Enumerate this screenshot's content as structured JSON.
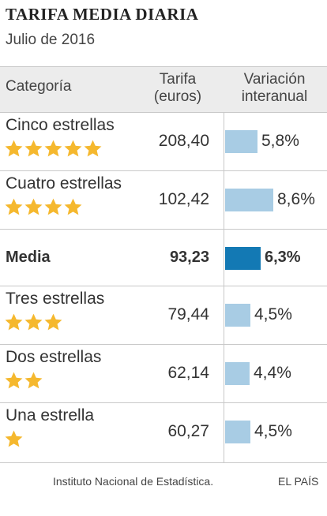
{
  "header": {
    "title": "TARIFA MEDIA DIARIA",
    "subtitle": "Julio de 2016"
  },
  "columns": {
    "category": "Categoría",
    "tarifa_line1": "Tarifa",
    "tarifa_line2": "(euros)",
    "variacion_line1": "Variación",
    "variacion_line2": "interanual"
  },
  "colors": {
    "bar": "#a8cce4",
    "bar_highlight": "#1379b4",
    "star": "#f5b82e"
  },
  "chart_data": {
    "type": "table",
    "title": "TARIFA MEDIA DIARIA",
    "subtitle": "Julio de 2016",
    "columns": [
      "Categoría",
      "Tarifa (euros)",
      "Variación interanual"
    ],
    "rows": [
      {
        "category": "Cinco estrellas",
        "stars": 5,
        "tarifa": "208,40",
        "variacion": 5.8,
        "variacion_label": "5,8%"
      },
      {
        "category": "Cuatro estrellas",
        "stars": 4,
        "tarifa": "102,42",
        "variacion": 8.6,
        "variacion_label": "8,6%"
      },
      {
        "category": "Media",
        "stars": 0,
        "tarifa": "93,23",
        "variacion": 6.3,
        "variacion_label": "6,3%",
        "highlight": true
      },
      {
        "category": "Tres estrellas",
        "stars": 3,
        "tarifa": "79,44",
        "variacion": 4.5,
        "variacion_label": "4,5%"
      },
      {
        "category": "Dos estrellas",
        "stars": 2,
        "tarifa": "62,14",
        "variacion": 4.4,
        "variacion_label": "4,4%"
      },
      {
        "category": "Una estrella",
        "stars": 1,
        "tarifa": "60,27",
        "variacion": 4.5,
        "variacion_label": "4,5%"
      }
    ],
    "xlim": [
      0,
      9
    ]
  },
  "footer": {
    "source": "Instituto Nacional de Estadística.",
    "brand": "EL PAÍS"
  }
}
